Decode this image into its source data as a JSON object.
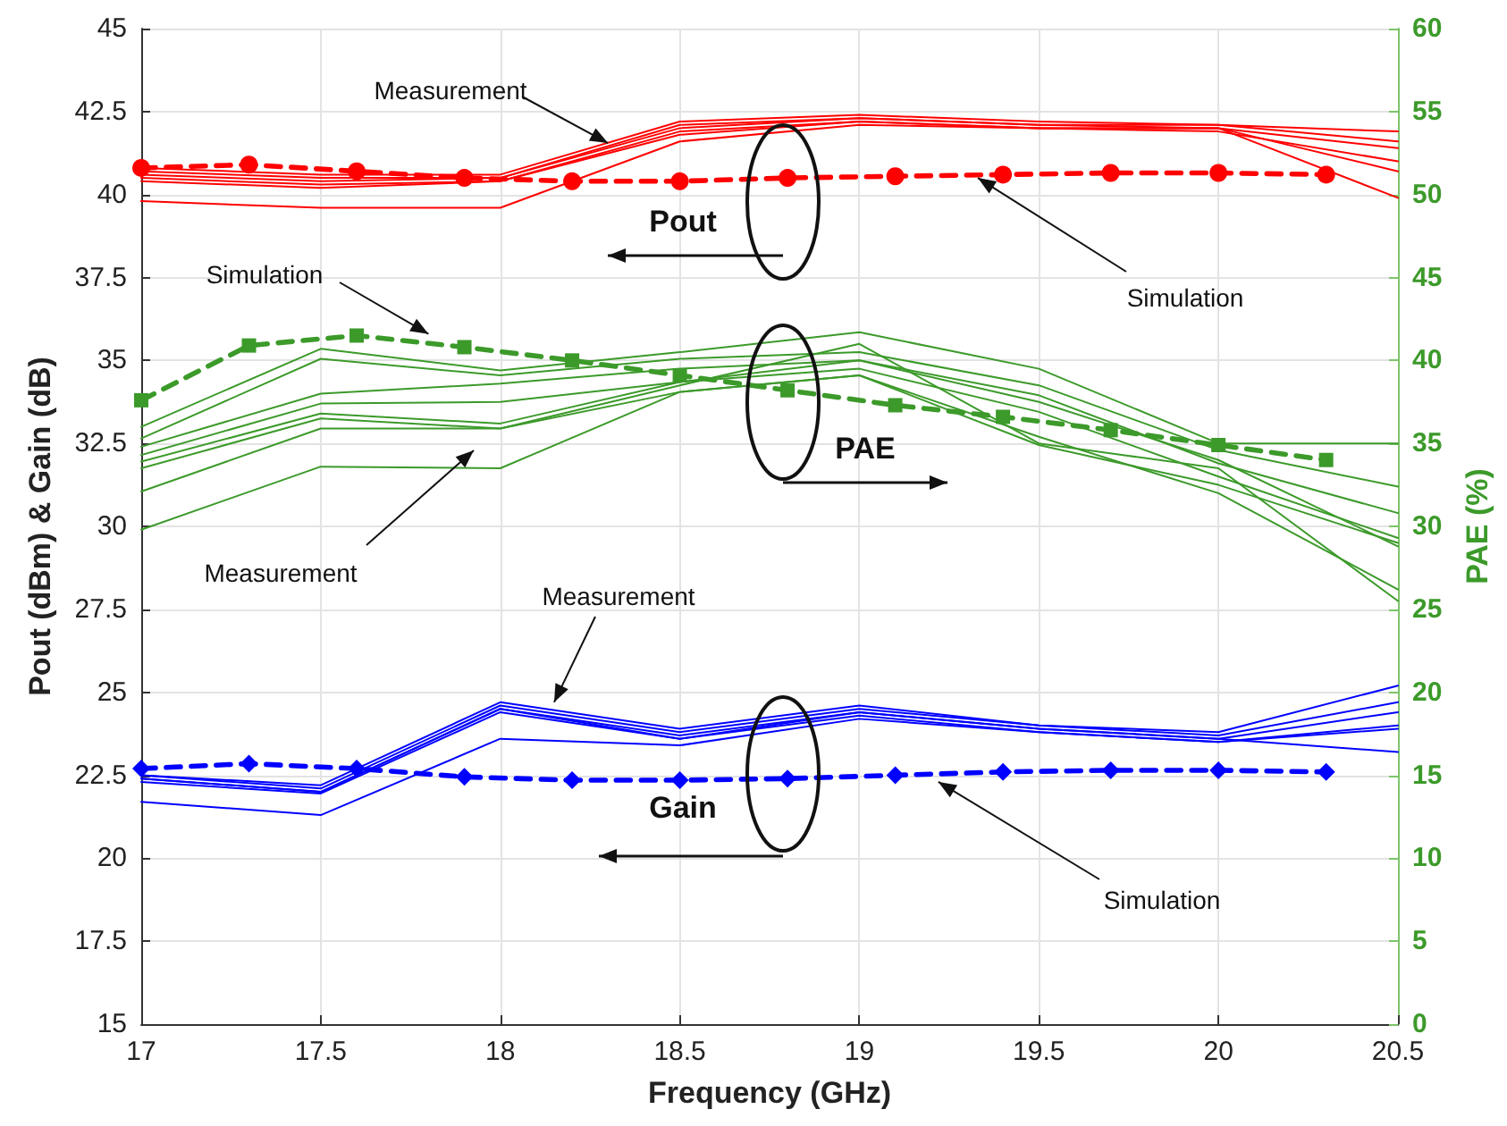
{
  "chart_data": {
    "type": "line",
    "xlabel": "Frequency (GHz)",
    "ylabel": "Pout (dBm) & Gain (dB)",
    "y2label": "PAE (%)",
    "x": [
      17,
      17.5,
      18,
      18.5,
      19,
      19.5,
      20,
      20.5
    ],
    "xlim": [
      17,
      20.5
    ],
    "xticks": [
      17,
      17.5,
      18,
      18.5,
      19,
      19.5,
      20,
      20.5
    ],
    "ylim": [
      15,
      45
    ],
    "yticks": [
      15,
      17.5,
      20,
      22.5,
      25,
      27.5,
      30,
      32.5,
      35,
      37.5,
      40,
      42.5,
      45
    ],
    "y2lim": [
      0,
      60
    ],
    "y2ticks": [
      0,
      5,
      10,
      15,
      20,
      25,
      30,
      35,
      40,
      45,
      50,
      55,
      60
    ],
    "grid": true,
    "marker": "none",
    "line_style": "solid",
    "series": [
      {
        "color": "#ff0000",
        "values": [
          40.8,
          40.6,
          40.6,
          42.2,
          42.4,
          42.2,
          42.1,
          41.9
        ]
      },
      {
        "color": "#ff0000",
        "values": [
          40.7,
          40.5,
          40.5,
          42.1,
          42.3,
          42.1,
          42.1,
          41.6
        ]
      },
      {
        "color": "#ff0000",
        "values": [
          40.6,
          40.4,
          40.5,
          42.0,
          42.3,
          42.1,
          42.0,
          41.4
        ]
      },
      {
        "color": "#ff0000",
        "values": [
          40.5,
          40.3,
          40.4,
          41.9,
          42.2,
          42.0,
          42.0,
          40.7
        ]
      },
      {
        "color": "#ff0000",
        "values": [
          40.4,
          40.2,
          40.4,
          41.8,
          42.2,
          42.0,
          41.9,
          41.0
        ]
      },
      {
        "color": "#ff0000",
        "values": [
          39.8,
          39.6,
          39.6,
          41.6,
          42.1,
          42.0,
          42.0,
          39.9
        ]
      },
      {
        "color": "#ff0000",
        "marker": "circle",
        "line_style": "dashed",
        "x": [
          17,
          17.3,
          17.6,
          17.9,
          18.2,
          18.5,
          18.8,
          19.1,
          19.4,
          19.7,
          20,
          20.3
        ],
        "values": [
          40.8,
          40.9,
          40.7,
          40.5,
          40.4,
          40.4,
          40.5,
          40.55,
          40.6,
          40.65,
          40.65,
          40.6
        ]
      },
      {
        "color": "#3c9a2a",
        "axis": "y2",
        "values": [
          36.0,
          40.7,
          39.4,
          40.5,
          41.7,
          39.5,
          35.0,
          35.0
        ]
      },
      {
        "color": "#3c9a2a",
        "axis": "y2",
        "values": [
          35.3,
          40.1,
          39.1,
          40.1,
          40.5,
          38.5,
          34.6,
          32.4
        ]
      },
      {
        "color": "#3c9a2a",
        "axis": "y2",
        "values": [
          34.8,
          38.0,
          38.6,
          39.5,
          40.0,
          37.9,
          33.8,
          30.8
        ]
      },
      {
        "color": "#3c9a2a",
        "axis": "y2",
        "values": [
          34.3,
          37.4,
          37.5,
          38.7,
          39.5,
          36.9,
          33.0,
          29.3
        ]
      },
      {
        "color": "#3c9a2a",
        "axis": "y2",
        "values": [
          33.9,
          36.8,
          36.2,
          38.7,
          40.0,
          37.5,
          34.0,
          28.8
        ]
      },
      {
        "color": "#3c9a2a",
        "axis": "y2",
        "values": [
          33.5,
          36.5,
          35.9,
          38.1,
          39.1,
          35.4,
          32.0,
          26.2
        ]
      },
      {
        "color": "#3c9a2a",
        "axis": "y2",
        "values": [
          32.1,
          35.9,
          35.9,
          38.5,
          41.0,
          35.0,
          33.5,
          25.5
        ]
      },
      {
        "color": "#3c9a2a",
        "axis": "y2",
        "values": [
          29.8,
          33.6,
          33.5,
          38.1,
          39.1,
          34.9,
          32.5,
          29.0
        ]
      },
      {
        "color": "#3c9a2a",
        "axis": "y2",
        "marker": "square",
        "line_style": "dashed",
        "x": [
          17,
          17.3,
          17.6,
          17.9,
          18.2,
          18.5,
          18.8,
          19.1,
          19.4,
          19.7,
          20,
          20.3
        ],
        "values": [
          37.6,
          40.9,
          41.5,
          40.8,
          40.0,
          39.1,
          38.2,
          37.3,
          36.6,
          35.8,
          34.9,
          34.0
        ]
      },
      {
        "color": "#0000ff",
        "values": [
          22.5,
          22.2,
          24.7,
          23.9,
          24.6,
          24.0,
          23.8,
          25.2
        ]
      },
      {
        "color": "#0000ff",
        "values": [
          22.5,
          22.1,
          24.6,
          23.8,
          24.5,
          24.0,
          23.7,
          24.7
        ]
      },
      {
        "color": "#0000ff",
        "values": [
          22.4,
          22.0,
          24.5,
          23.7,
          24.4,
          23.9,
          23.6,
          24.4
        ]
      },
      {
        "color": "#0000ff",
        "values": [
          22.3,
          21.95,
          24.4,
          23.6,
          24.3,
          23.8,
          23.5,
          24.0
        ]
      },
      {
        "color": "#0000ff",
        "values": [
          22.4,
          22.0,
          24.5,
          23.6,
          24.4,
          23.9,
          23.6,
          23.2
        ]
      },
      {
        "color": "#0000ff",
        "values": [
          21.7,
          21.3,
          23.6,
          23.4,
          24.2,
          23.8,
          23.5,
          23.9
        ]
      },
      {
        "color": "#0000ff",
        "marker": "diamond",
        "line_style": "dashed",
        "x": [
          17,
          17.3,
          17.6,
          17.9,
          18.2,
          18.5,
          18.8,
          19.1,
          19.4,
          19.7,
          20,
          20.3
        ],
        "values": [
          22.7,
          22.85,
          22.7,
          22.45,
          22.35,
          22.35,
          22.4,
          22.5,
          22.6,
          22.65,
          22.65,
          22.6
        ]
      }
    ],
    "annotations": [
      {
        "text": "Measurement",
        "x": 18.3,
        "y": 41.55
      },
      {
        "text": "Simulation",
        "x": 17.8,
        "y": 35.8
      },
      {
        "text": "Simulation",
        "x": 19.33,
        "y": 40.5
      },
      "Measurement",
      {
        "text": "Measurement",
        "x": 18.15,
        "y": 24.7
      },
      {
        "text": "Simulation",
        "x": 19.22,
        "y": 22.3
      },
      "Pout",
      "PAE",
      "Gain"
    ]
  }
}
